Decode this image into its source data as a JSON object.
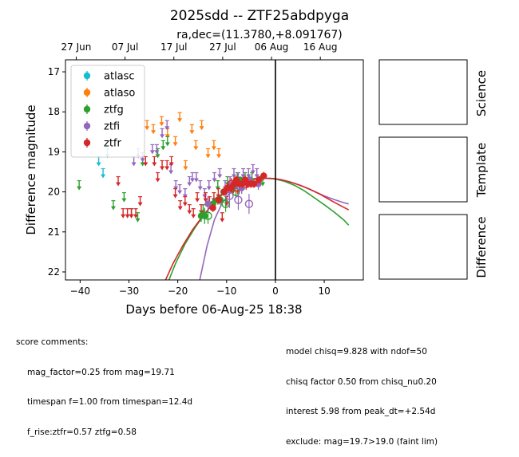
{
  "chart_data": {
    "type": "scatter",
    "title": "2025sdd -- ZTF25abdpyga",
    "subtitle": "ra,dec=(11.3780,+8.091767)",
    "xlabel": "Days before 06-Aug-25 18:38",
    "ylabel": "Difference magnitude",
    "xlim": [
      -43,
      18
    ],
    "ylim": [
      22.2,
      16.7
    ],
    "y_inverted": true,
    "x_ticks": [
      -40,
      -30,
      -20,
      -10,
      0,
      10
    ],
    "y_ticks": [
      17,
      18,
      19,
      20,
      21,
      22
    ],
    "top_axis_ticks": [
      {
        "x": -40.8,
        "label": "27 Jun"
      },
      {
        "x": -30.8,
        "label": "07 Jul"
      },
      {
        "x": -20.8,
        "label": "17 Jul"
      },
      {
        "x": -10.8,
        "label": "27 Jul"
      },
      {
        "x": -0.8,
        "label": "06 Aug"
      },
      {
        "x": 9.2,
        "label": "16 Aug"
      }
    ],
    "vline_x": 0,
    "legend_position": "upper-left",
    "series": [
      {
        "name": "atlasc",
        "color": "#17becf",
        "upper_limits": [
          [
            -36.2,
            19.2
          ],
          [
            -35.3,
            19.5
          ],
          [
            -34.4,
            19.0
          ]
        ]
      },
      {
        "name": "atlaso",
        "color": "#ff7f0e",
        "upper_limits": [
          [
            -26.3,
            18.3
          ],
          [
            -25.0,
            18.4
          ],
          [
            -23.3,
            18.2
          ],
          [
            -22.1,
            18.5
          ],
          [
            -20.5,
            18.7
          ],
          [
            -19.6,
            18.1
          ],
          [
            -18.4,
            19.3
          ],
          [
            -17.1,
            18.4
          ],
          [
            -16.3,
            18.8
          ],
          [
            -15.1,
            18.3
          ],
          [
            -13.8,
            19.0
          ],
          [
            -12.6,
            18.8
          ],
          [
            -11.6,
            19.0
          ]
        ]
      },
      {
        "name": "ztfg",
        "color": "#2ca02c",
        "points": [
          [
            -15.2,
            20.6,
            0.15
          ],
          [
            -14.5,
            20.6,
            0.2
          ],
          [
            -12.8,
            20.3,
            0.15
          ],
          [
            -11.8,
            20.2,
            0.12
          ],
          [
            -11.3,
            20.2,
            0.12
          ],
          [
            -10.6,
            20.0,
            0.1
          ],
          [
            -8.4,
            19.8,
            0.1
          ],
          [
            -7.2,
            19.7,
            0.08
          ],
          [
            -5.2,
            19.7,
            0.08
          ]
        ],
        "open_points": [
          [
            -13.8,
            20.6,
            0.2
          ],
          [
            -10.2,
            20.3,
            0.2
          ],
          [
            -8.1,
            20.0,
            0.15
          ]
        ],
        "upper_limits": [
          [
            -40.2,
            19.8
          ],
          [
            -33.2,
            20.3
          ],
          [
            -31.0,
            20.1
          ],
          [
            -29.5,
            20.5
          ],
          [
            -28.2,
            20.6
          ],
          [
            -27.2,
            19.2
          ],
          [
            -24.1,
            19.0
          ],
          [
            -23.0,
            18.8
          ],
          [
            -22.1,
            18.7
          ],
          [
            -14.8,
            20.4
          ],
          [
            -11.8,
            19.8
          ],
          [
            -9.8,
            19.7
          ],
          [
            -7.8,
            19.6
          ],
          [
            -6.2,
            19.6
          ],
          [
            -4.8,
            19.6
          ],
          [
            -3.1,
            19.7
          ],
          [
            -2.6,
            19.7
          ]
        ],
        "model_curve": [
          [
            -21.8,
            22.2
          ],
          [
            -20.5,
            21.8
          ],
          [
            -18.5,
            21.3
          ],
          [
            -16.5,
            20.9
          ],
          [
            -14.5,
            20.55
          ],
          [
            -12.5,
            20.25
          ],
          [
            -10.5,
            20.0
          ],
          [
            -8.5,
            19.82
          ],
          [
            -6.5,
            19.72
          ],
          [
            -4.5,
            19.67
          ],
          [
            -2.5,
            19.66
          ],
          [
            0,
            19.68
          ],
          [
            2,
            19.74
          ],
          [
            4,
            19.84
          ],
          [
            6,
            19.98
          ],
          [
            8,
            20.15
          ],
          [
            10,
            20.32
          ],
          [
            12,
            20.5
          ],
          [
            14,
            20.7
          ],
          [
            15,
            20.83
          ]
        ]
      },
      {
        "name": "ztfi",
        "color": "#9467bd",
        "points": [
          [
            -13.8,
            20.3,
            0.2
          ],
          [
            -7.8,
            19.8,
            0.15
          ],
          [
            -6.9,
            19.9,
            0.15
          ],
          [
            -5.3,
            19.7,
            0.12
          ],
          [
            -3.5,
            19.8,
            0.15
          ]
        ],
        "open_points": [
          [
            -9.4,
            20.1,
            0.3
          ],
          [
            -7.6,
            20.2,
            0.25
          ],
          [
            -5.4,
            20.3,
            0.25
          ]
        ],
        "upper_limits": [
          [
            -29.0,
            19.2
          ],
          [
            -28.1,
            19.0
          ],
          [
            -27.2,
            19.1
          ],
          [
            -25.2,
            18.9
          ],
          [
            -24.3,
            18.9
          ],
          [
            -23.2,
            18.5
          ],
          [
            -22.2,
            18.3
          ],
          [
            -21.4,
            19.4
          ],
          [
            -20.4,
            19.8
          ],
          [
            -19.6,
            19.9
          ],
          [
            -18.5,
            20.0
          ],
          [
            -17.6,
            19.7
          ],
          [
            -17.0,
            19.6
          ],
          [
            -16.2,
            19.6
          ],
          [
            -15.4,
            19.8
          ],
          [
            -14.5,
            20.0
          ],
          [
            -13.6,
            19.8
          ],
          [
            -12.5,
            19.6
          ],
          [
            -11.4,
            19.5
          ],
          [
            -10.3,
            19.8
          ],
          [
            -9.3,
            19.7
          ],
          [
            -8.5,
            19.5
          ],
          [
            -7.6,
            19.6
          ],
          [
            -6.6,
            19.5
          ],
          [
            -5.5,
            19.5
          ],
          [
            -4.6,
            19.4
          ],
          [
            -3.8,
            19.5
          ]
        ],
        "model_curve": [
          [
            -15.5,
            22.2
          ],
          [
            -14,
            21.35
          ],
          [
            -12.5,
            20.7
          ],
          [
            -11,
            20.3
          ],
          [
            -9.5,
            20.05
          ],
          [
            -8,
            19.88
          ],
          [
            -6.5,
            19.77
          ],
          [
            -5,
            19.7
          ],
          [
            -3.5,
            19.67
          ],
          [
            -2,
            19.66
          ],
          [
            0,
            19.67
          ],
          [
            2,
            19.72
          ],
          [
            4,
            19.79
          ],
          [
            6,
            19.88
          ],
          [
            8,
            19.99
          ],
          [
            10,
            20.1
          ],
          [
            12,
            20.19
          ],
          [
            14,
            20.27
          ],
          [
            15,
            20.3
          ]
        ]
      },
      {
        "name": "ztfr",
        "color": "#d62728",
        "points": [
          [
            -12.8,
            20.4,
            0.1
          ],
          [
            -11.6,
            20.2,
            0.1
          ],
          [
            -10.5,
            20.0,
            0.1
          ],
          [
            -9.8,
            19.9,
            0.1
          ],
          [
            -9.1,
            19.9,
            0.1
          ],
          [
            -8.4,
            19.8,
            0.1
          ],
          [
            -8.0,
            19.7,
            0.1
          ],
          [
            -7.4,
            19.8,
            0.1
          ],
          [
            -6.8,
            19.8,
            0.1
          ],
          [
            -6.2,
            19.7,
            0.1
          ],
          [
            -5.6,
            19.8,
            0.1
          ],
          [
            -5.0,
            19.8,
            0.1
          ],
          [
            -4.4,
            19.8,
            0.1
          ],
          [
            -3.4,
            19.7,
            0.1
          ],
          [
            -2.4,
            19.6,
            0.1
          ]
        ],
        "open_points": [
          [
            -9.0,
            19.8,
            0.15
          ],
          [
            -7.8,
            19.9,
            0.15
          ],
          [
            -6.0,
            19.8,
            0.15
          ]
        ],
        "upper_limits": [
          [
            -32.2,
            19.7
          ],
          [
            -31.2,
            20.5
          ],
          [
            -30.3,
            20.5
          ],
          [
            -29.5,
            20.5
          ],
          [
            -28.6,
            20.5
          ],
          [
            -27.7,
            20.2
          ],
          [
            -26.6,
            19.2
          ],
          [
            -24.8,
            19.2
          ],
          [
            -24.1,
            19.6
          ],
          [
            -23.2,
            19.3
          ],
          [
            -22.2,
            19.3
          ],
          [
            -21.3,
            19.2
          ],
          [
            -20.5,
            20.0
          ],
          [
            -19.5,
            20.3
          ],
          [
            -18.5,
            20.2
          ],
          [
            -17.6,
            20.4
          ],
          [
            -16.8,
            20.5
          ],
          [
            -16.0,
            20.1
          ],
          [
            -15.2,
            20.4
          ],
          [
            -14.3,
            20.1
          ],
          [
            -13.5,
            20.2
          ],
          [
            -12.6,
            20.1
          ],
          [
            -11.7,
            20.0
          ],
          [
            -10.9,
            20.6
          ],
          [
            -10.0,
            20.2
          ],
          [
            -9.3,
            19.9
          ],
          [
            -8.7,
            19.9
          ]
        ],
        "model_curve": [
          [
            -22.5,
            22.2
          ],
          [
            -21,
            21.8
          ],
          [
            -19,
            21.35
          ],
          [
            -17,
            20.95
          ],
          [
            -15,
            20.62
          ],
          [
            -13,
            20.33
          ],
          [
            -11,
            20.08
          ],
          [
            -9,
            19.88
          ],
          [
            -7,
            19.75
          ],
          [
            -5,
            19.68
          ],
          [
            -3,
            19.66
          ],
          [
            -1,
            19.66
          ],
          [
            1,
            19.69
          ],
          [
            3,
            19.75
          ],
          [
            5,
            19.83
          ],
          [
            7,
            19.93
          ],
          [
            9,
            20.05
          ],
          [
            11,
            20.19
          ],
          [
            13,
            20.32
          ],
          [
            15,
            20.45
          ]
        ]
      }
    ],
    "side_panels": [
      "Science",
      "Template",
      "Difference"
    ]
  },
  "comments_left": {
    "heading": "score comments:",
    "lines": [
      "mag_factor=0.25 from mag=19.71",
      "timespan f=1.00 from timespan=12.4d",
      "f_rise:ztfr=0.57 ztfg=0.58"
    ]
  },
  "comments_right": {
    "lines": [
      "model chisq=9.828 with ndof=50",
      "chisq factor 0.50 from chisq_nu0.20",
      "interest 5.98 from peak_dt=+2.54d",
      "exclude: mag=19.7>19.0 (faint lim)"
    ]
  }
}
